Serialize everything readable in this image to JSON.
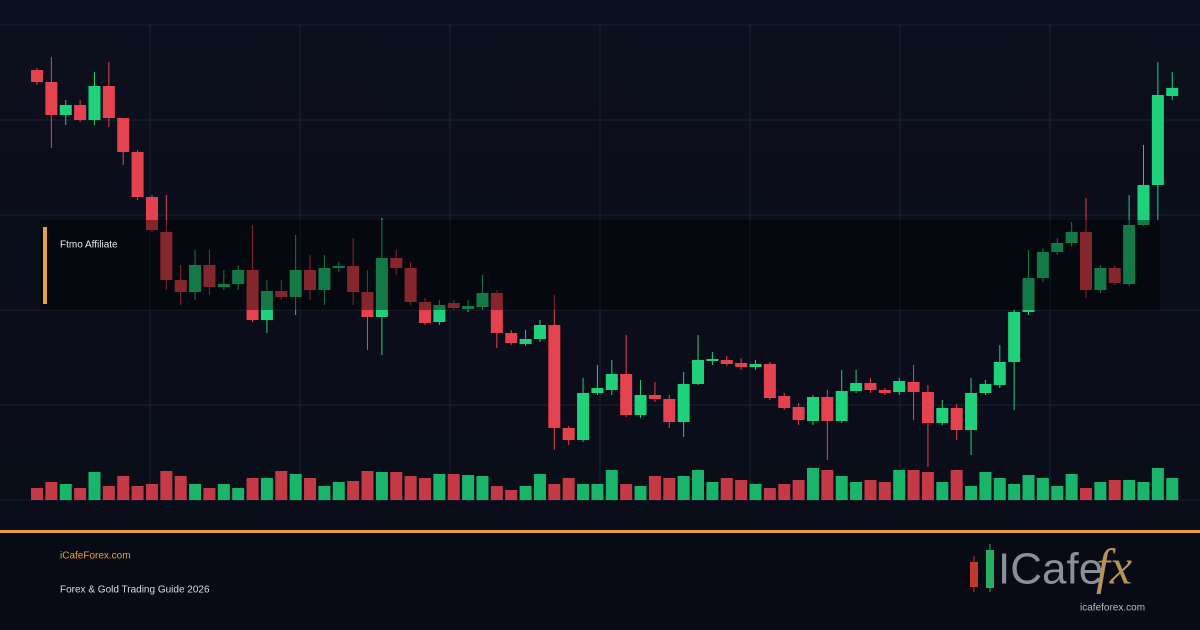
{
  "chart_data": {
    "type": "candlestick",
    "annotation": "Ftmo Affiliate",
    "ylim": [
      0,
      475
    ],
    "yticks": [
      0,
      95,
      190,
      285,
      380,
      475
    ],
    "grid": true,
    "up_color": "#1fd17a",
    "down_color": "#e5424f",
    "open": [
      430,
      418,
      385,
      395,
      380,
      414,
      382,
      348,
      303,
      268,
      220,
      208,
      235,
      213,
      216,
      230,
      180,
      209,
      203,
      230,
      210,
      232,
      234,
      208,
      183,
      242,
      232,
      198,
      178,
      197,
      191,
      193,
      207,
      167,
      156,
      161,
      175,
      72,
      60,
      107,
      110,
      126,
      85,
      105,
      101,
      78,
      116,
      139,
      140,
      137,
      133,
      136,
      104,
      93,
      79,
      103,
      79,
      109,
      117,
      110,
      108,
      118,
      108,
      77,
      92,
      70,
      107,
      115,
      138,
      188,
      222,
      248,
      257,
      268,
      210,
      232,
      216,
      275,
      315,
      404
    ],
    "high": [
      432,
      443,
      400,
      400,
      428,
      438,
      382,
      350,
      305,
      305,
      235,
      250,
      250,
      230,
      235,
      275,
      220,
      220,
      265,
      245,
      245,
      238,
      262,
      230,
      282,
      250,
      238,
      202,
      200,
      200,
      200,
      225,
      210,
      170,
      170,
      180,
      205,
      74,
      122,
      135,
      140,
      165,
      120,
      118,
      105,
      128,
      165,
      148,
      144,
      142,
      140,
      138,
      107,
      97,
      105,
      110,
      130,
      130,
      122,
      112,
      122,
      135,
      115,
      100,
      96,
      122,
      120,
      155,
      190,
      250,
      252,
      262,
      278,
      302,
      235,
      235,
      305,
      355,
      438,
      428
    ],
    "low": [
      415,
      352,
      375,
      378,
      375,
      373,
      335,
      300,
      268,
      210,
      195,
      200,
      205,
      210,
      210,
      178,
      167,
      200,
      185,
      200,
      195,
      228,
      195,
      150,
      145,
      225,
      195,
      175,
      175,
      190,
      188,
      190,
      152,
      155,
      154,
      158,
      50,
      55,
      58,
      105,
      105,
      83,
      82,
      98,
      72,
      63,
      115,
      135,
      134,
      130,
      130,
      100,
      90,
      75,
      75,
      40,
      77,
      107,
      107,
      105,
      105,
      80,
      33,
      75,
      60,
      45,
      105,
      112,
      90,
      185,
      218,
      245,
      253,
      202,
      207,
      215,
      214,
      274,
      280,
      400
    ],
    "close": [
      418,
      385,
      395,
      380,
      414,
      382,
      348,
      303,
      270,
      220,
      208,
      235,
      213,
      216,
      230,
      180,
      209,
      203,
      230,
      210,
      232,
      234,
      208,
      183,
      242,
      232,
      198,
      177,
      195,
      192,
      194,
      207,
      167,
      157,
      161,
      175,
      72,
      60,
      107,
      112,
      126,
      85,
      105,
      101,
      78,
      116,
      140,
      141,
      136,
      133,
      136,
      102,
      92,
      80,
      103,
      79,
      109,
      117,
      110,
      107,
      119,
      108,
      77,
      92,
      70,
      107,
      116,
      138,
      188,
      222,
      248,
      257,
      268,
      210,
      232,
      217,
      275,
      315,
      405,
      412
    ],
    "volume": [
      12,
      18,
      16,
      12,
      28,
      14,
      24,
      14,
      16,
      29,
      24,
      16,
      12,
      16,
      12,
      22,
      22,
      29,
      26,
      22,
      14,
      18,
      19,
      29,
      28,
      28,
      24,
      22,
      26,
      26,
      25,
      24,
      14,
      10,
      14,
      26,
      16,
      22,
      16,
      16,
      30,
      16,
      14,
      24,
      22,
      24,
      30,
      18,
      22,
      20,
      16,
      12,
      16,
      20,
      32,
      30,
      24,
      18,
      20,
      18,
      30,
      30,
      28,
      18,
      30,
      14,
      28,
      22,
      16,
      25,
      22,
      14,
      26,
      12,
      18,
      20,
      20,
      18,
      32,
      22
    ]
  },
  "footer": {
    "site": "iCafeForex.com",
    "subtitle": "Forex & Gold Trading Guide 2026",
    "logo_text": "ICafe",
    "logo_accent": "fx",
    "logo_url": "icafeforex.com"
  }
}
